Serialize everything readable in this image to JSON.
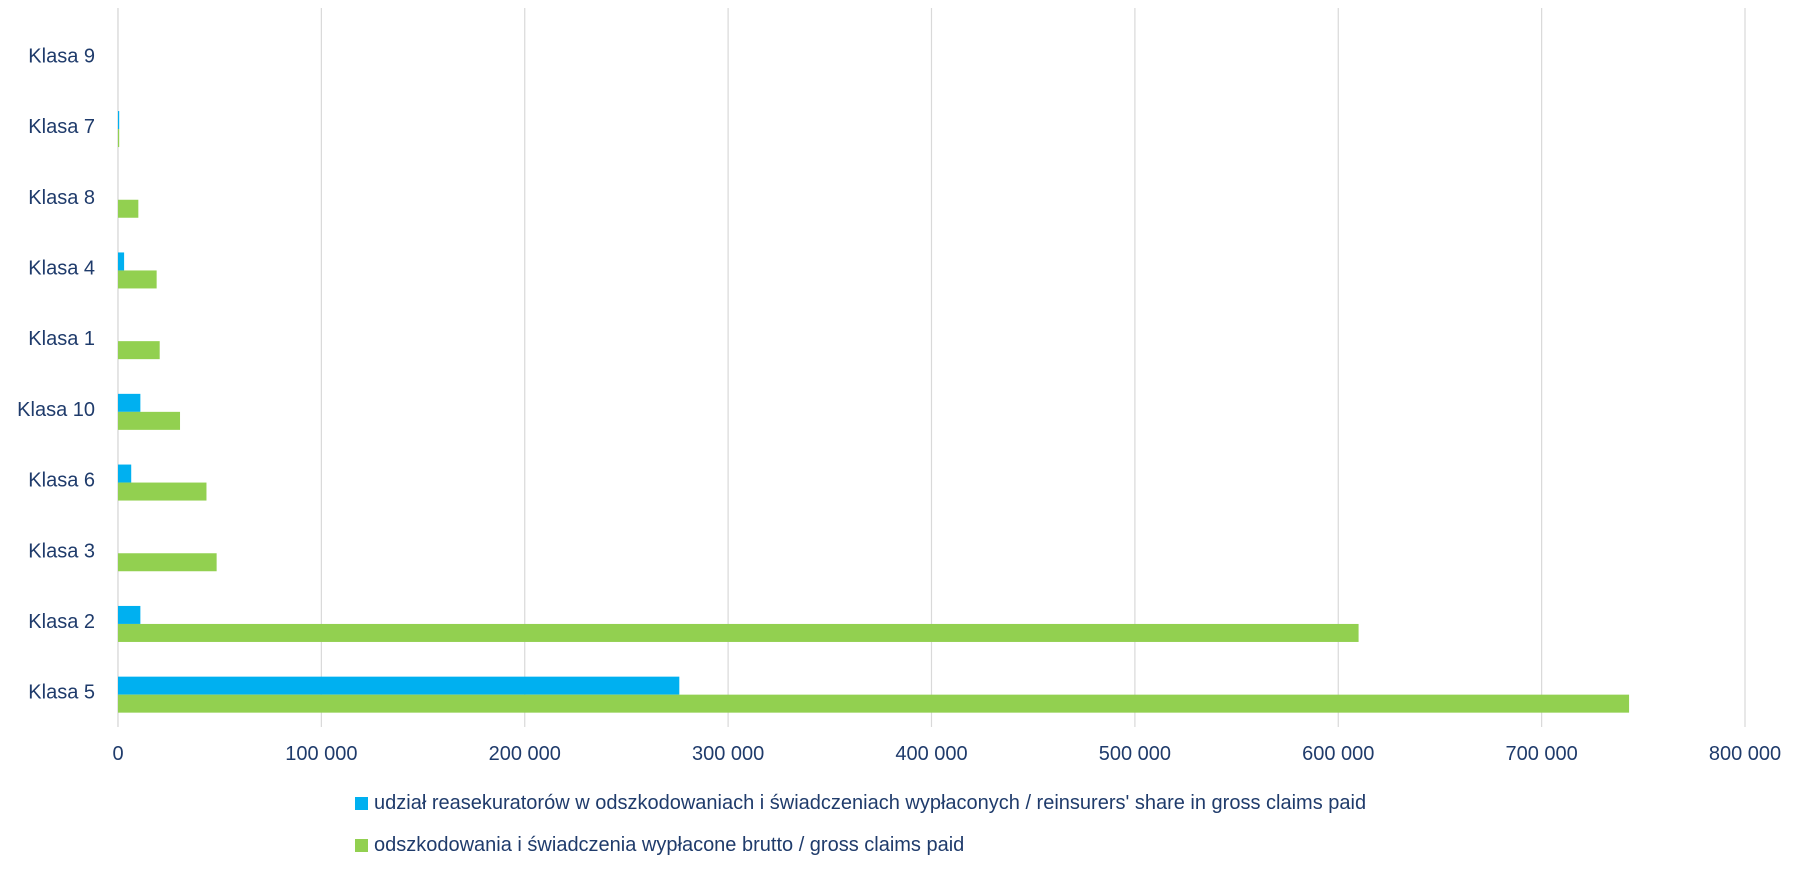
{
  "chart_data": {
    "type": "bar",
    "orientation": "horizontal",
    "categories": [
      "Klasa 9",
      "Klasa 7",
      "Klasa 8",
      "Klasa 4",
      "Klasa 1",
      "Klasa 10",
      "Klasa 6",
      "Klasa 3",
      "Klasa 2",
      "Klasa 5"
    ],
    "series": [
      {
        "name": "udział reasekuratorów w odszkodowaniach i świadczeniach wypłaconych / reinsurers' share in gross claims paid",
        "color": "#00B0F0",
        "values": [
          0,
          300,
          0,
          3000,
          0,
          11000,
          6500,
          0,
          11000,
          276000
        ]
      },
      {
        "name": "odszkodowania i świadczenia wypłacone brutto / gross claims paid",
        "color": "#92D050",
        "values": [
          0,
          500,
          10000,
          19000,
          20500,
          30500,
          43500,
          48500,
          610000,
          743000
        ]
      }
    ],
    "xlim": [
      0,
      800000
    ],
    "xticks": [
      0,
      100000,
      200000,
      300000,
      400000,
      500000,
      600000,
      700000,
      800000
    ],
    "xtick_labels": [
      "0",
      "100 000",
      "200 000",
      "300 000",
      "400 000",
      "500 000",
      "600 000",
      "700 000",
      "800 000"
    ],
    "grid": "vertical",
    "legend_position": "bottom",
    "title": "",
    "xlabel": "",
    "ylabel": "",
    "text_color": "#1f3b6b",
    "grid_color": "#d9d9d9"
  }
}
